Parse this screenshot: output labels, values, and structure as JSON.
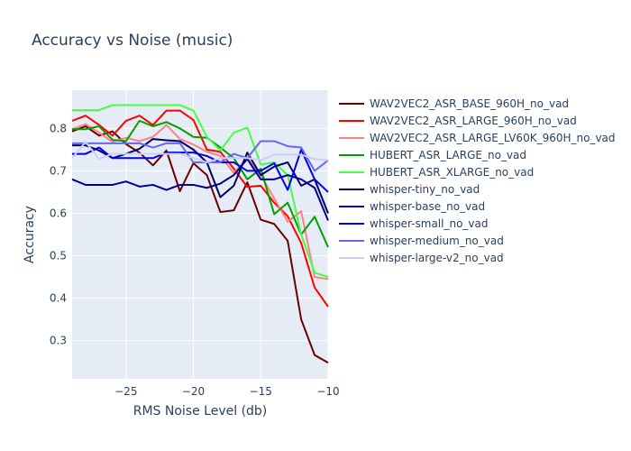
{
  "chart_data": {
    "type": "line",
    "title": "Accuracy vs Noise (music)",
    "xlabel": "RMS Noise Level (db)",
    "ylabel": "Accuracy",
    "xlim": [
      -29,
      -10
    ],
    "ylim": [
      0.21,
      0.89
    ],
    "xticks": [
      -25,
      -20,
      -15,
      -10
    ],
    "yticks": [
      0.3,
      0.4,
      0.5,
      0.6,
      0.7,
      0.8
    ],
    "grid": true,
    "legend_position": "right",
    "x": [
      -29,
      -28,
      -27,
      -26,
      -25,
      -24,
      -23,
      -22,
      -21,
      -20,
      -19,
      -18,
      -17,
      -16,
      -15,
      -14,
      -13,
      -12,
      -11,
      -10
    ],
    "series": [
      {
        "name": "WAV2VEC2_ASR_BASE_960H_no_vad",
        "color": "#6b0000",
        "values": [
          0.793,
          0.805,
          0.783,
          0.793,
          0.763,
          0.743,
          0.713,
          0.748,
          0.652,
          0.718,
          0.69,
          0.603,
          0.607,
          0.673,
          0.585,
          0.575,
          0.535,
          0.35,
          0.266,
          0.248
        ]
      },
      {
        "name": "WAV2VEC2_ASR_LARGE_960H_no_vad",
        "color": "#ff0000",
        "values": [
          0.818,
          0.83,
          0.808,
          0.783,
          0.818,
          0.83,
          0.808,
          0.842,
          0.842,
          0.82,
          0.75,
          0.745,
          0.705,
          0.662,
          0.665,
          0.625,
          0.593,
          0.53,
          0.425,
          0.38
        ]
      },
      {
        "name": "WAV2VEC2_ASR_LARGE_LV60K_960H_no_vad",
        "color": "#ff8080",
        "values": [
          0.798,
          0.81,
          0.79,
          0.768,
          0.778,
          0.77,
          0.78,
          0.808,
          0.775,
          0.762,
          0.745,
          0.735,
          0.695,
          0.73,
          0.69,
          0.635,
          0.58,
          0.605,
          0.45,
          0.445
        ]
      },
      {
        "name": "HUBERT_ASR_LARGE_no_vad",
        "color": "#00a000",
        "values": [
          0.798,
          0.798,
          0.805,
          0.773,
          0.77,
          0.818,
          0.805,
          0.815,
          0.8,
          0.78,
          0.778,
          0.755,
          0.73,
          0.68,
          0.705,
          0.598,
          0.625,
          0.55,
          0.592,
          0.52
        ]
      },
      {
        "name": "HUBERT_ASR_XLARGE_no_vad",
        "color": "#44ff44",
        "values": [
          0.843,
          0.843,
          0.843,
          0.855,
          0.855,
          0.855,
          0.855,
          0.855,
          0.855,
          0.842,
          0.78,
          0.748,
          0.79,
          0.802,
          0.715,
          0.72,
          0.69,
          0.55,
          0.46,
          0.45
        ]
      },
      {
        "name": "whisper-tiny_no_vad",
        "color": "#000060",
        "values": [
          0.76,
          0.76,
          0.748,
          0.73,
          0.74,
          0.752,
          0.775,
          0.772,
          0.77,
          0.75,
          0.72,
          0.638,
          0.665,
          0.743,
          0.69,
          0.71,
          0.72,
          0.665,
          0.68,
          0.6
        ]
      },
      {
        "name": "whisper-base_no_vad",
        "color": "#000090",
        "values": [
          0.68,
          0.667,
          0.667,
          0.667,
          0.675,
          0.663,
          0.667,
          0.655,
          0.667,
          0.667,
          0.66,
          0.67,
          0.69,
          0.728,
          0.68,
          0.68,
          0.69,
          0.68,
          0.66,
          0.583
        ]
      },
      {
        "name": "whisper-small_no_vad",
        "color": "#0000ee",
        "values": [
          0.74,
          0.74,
          0.755,
          0.73,
          0.73,
          0.73,
          0.73,
          0.743,
          0.743,
          0.743,
          0.735,
          0.72,
          0.72,
          0.7,
          0.7,
          0.718,
          0.655,
          0.75,
          0.68,
          0.65
        ]
      },
      {
        "name": "whisper-medium_no_vad",
        "color": "#6666ee",
        "values": [
          0.765,
          0.765,
          0.765,
          0.765,
          0.765,
          0.765,
          0.755,
          0.765,
          0.765,
          0.72,
          0.72,
          0.72,
          0.74,
          0.73,
          0.77,
          0.77,
          0.758,
          0.755,
          0.7,
          0.725
        ]
      },
      {
        "name": "whisper-large-v2_no_vad",
        "color": "#ccccff",
        "values": [
          0.73,
          0.768,
          0.728,
          0.74,
          0.74,
          0.74,
          0.74,
          0.74,
          0.74,
          0.73,
          0.72,
          0.73,
          0.73,
          0.73,
          0.725,
          0.738,
          0.738,
          0.738,
          0.728,
          0.725
        ]
      }
    ]
  }
}
